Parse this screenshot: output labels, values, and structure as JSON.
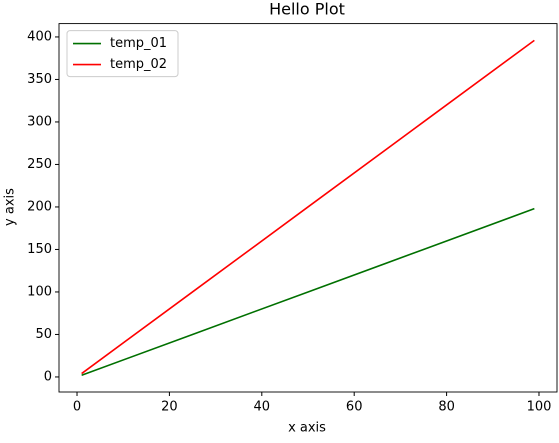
{
  "chart_data": {
    "type": "line",
    "title": "Hello Plot",
    "xlabel": "x axis",
    "ylabel": "y axis",
    "x": [
      1,
      25,
      50,
      75,
      99
    ],
    "series": [
      {
        "name": "temp_01",
        "color": "#007000",
        "values": [
          2,
          50,
          100,
          150,
          198
        ]
      },
      {
        "name": "temp_02",
        "color": "#ff0000",
        "values": [
          4,
          100,
          200,
          300,
          396
        ]
      }
    ],
    "xlim": [
      -3.9,
      103.9
    ],
    "xticks": [
      0,
      20,
      40,
      60,
      80,
      100
    ],
    "ylim": [
      -17.7,
      415.7
    ],
    "yticks": [
      0,
      50,
      100,
      150,
      200,
      250,
      300,
      350,
      400
    ],
    "legend": "upper left"
  }
}
